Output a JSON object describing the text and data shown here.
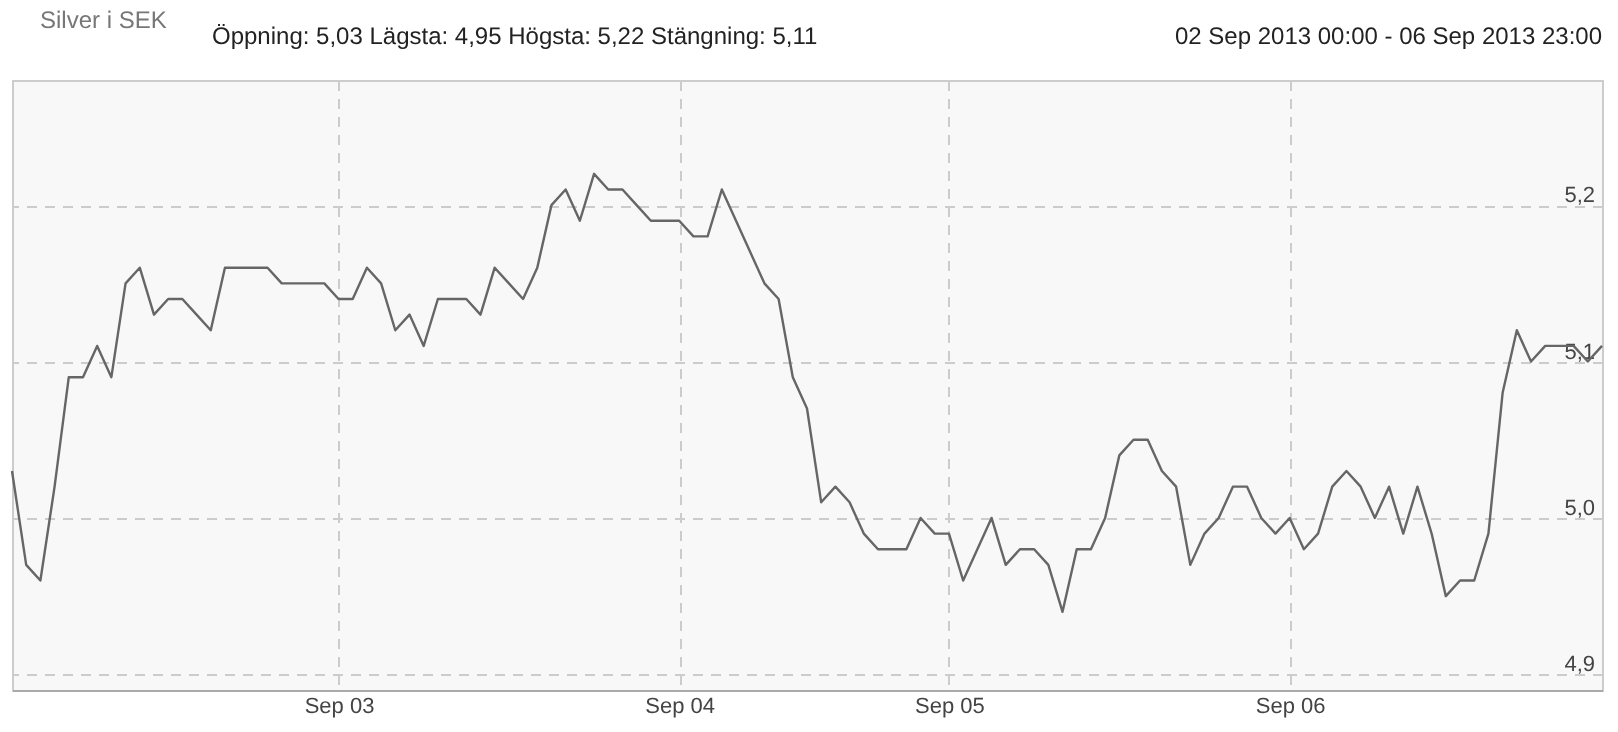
{
  "chart_data": {
    "type": "line",
    "categories": [
      null,
      null,
      null,
      null,
      null,
      null,
      null,
      null,
      null,
      null,
      null,
      null,
      null,
      null,
      null,
      null,
      null,
      null,
      null,
      null,
      null,
      null,
      null,
      "Sep 03",
      null,
      null,
      null,
      null,
      null,
      null,
      null,
      null,
      null,
      null,
      null,
      null,
      null,
      null,
      null,
      null,
      null,
      null,
      null,
      null,
      null,
      null,
      null,
      "Sep 04",
      null,
      null,
      null,
      null,
      null,
      null,
      null,
      null,
      null,
      null,
      null,
      null,
      null,
      null,
      null,
      null,
      null,
      null,
      "Sep 05",
      null,
      null,
      null,
      null,
      null,
      null,
      null,
      null,
      null,
      null,
      null,
      null,
      null,
      null,
      null,
      null,
      null,
      null,
      null,
      null,
      null,
      null,
      null,
      "Sep 06",
      null,
      null,
      null,
      null,
      null,
      null,
      null,
      null,
      null,
      null,
      null,
      null,
      null,
      null,
      null,
      null,
      null,
      null,
      null,
      null,
      null,
      null
    ],
    "series": [
      {
        "name": "Silver i SEK",
        "color": "#666666",
        "values": [
          5.03,
          4.97,
          4.96,
          5.02,
          5.09,
          5.09,
          5.11,
          5.09,
          5.15,
          5.16,
          5.13,
          5.14,
          5.14,
          5.13,
          5.12,
          5.16,
          5.16,
          5.16,
          5.16,
          5.15,
          5.15,
          5.15,
          5.15,
          5.14,
          5.14,
          5.16,
          5.15,
          5.12,
          5.13,
          5.11,
          5.14,
          5.14,
          5.14,
          5.13,
          5.16,
          5.15,
          5.14,
          5.16,
          5.2,
          5.21,
          5.19,
          5.22,
          5.21,
          5.21,
          5.2,
          5.19,
          5.19,
          5.19,
          5.18,
          5.18,
          5.21,
          5.19,
          5.17,
          5.15,
          5.14,
          5.09,
          5.07,
          5.01,
          5.02,
          5.01,
          4.99,
          4.98,
          4.98,
          4.98,
          5.0,
          4.99,
          4.99,
          4.96,
          4.98,
          5.0,
          4.97,
          4.98,
          4.98,
          4.97,
          4.94,
          4.98,
          4.98,
          5.0,
          5.04,
          5.05,
          5.05,
          5.03,
          5.02,
          4.97,
          4.99,
          5.0,
          5.02,
          5.02,
          5.0,
          4.99,
          5.0,
          4.98,
          4.99,
          5.02,
          5.03,
          5.02,
          5.0,
          5.02,
          4.99,
          5.02,
          4.99,
          4.95,
          4.96,
          4.96,
          4.99,
          5.08,
          5.12,
          5.1,
          5.11,
          5.11,
          5.11,
          5.1,
          5.11
        ]
      }
    ],
    "ylim": [
      4.89,
      5.28
    ],
    "yticks": [
      {
        "value": 4.9,
        "label": "4,9"
      },
      {
        "value": 5.0,
        "label": "5,0"
      },
      {
        "value": 5.1,
        "label": "5,1"
      },
      {
        "value": 5.2,
        "label": "5,2"
      }
    ],
    "grid": true,
    "legend": "top left",
    "marker": "none",
    "line_style": "solid",
    "annotations": [
      "Öppning: 5,03  Lägsta: 4,95  Högsta: 5,22  Stängning: 5,11",
      "02 Sep 2013 00:00 - 06 Sep 2013 23:00"
    ]
  }
}
